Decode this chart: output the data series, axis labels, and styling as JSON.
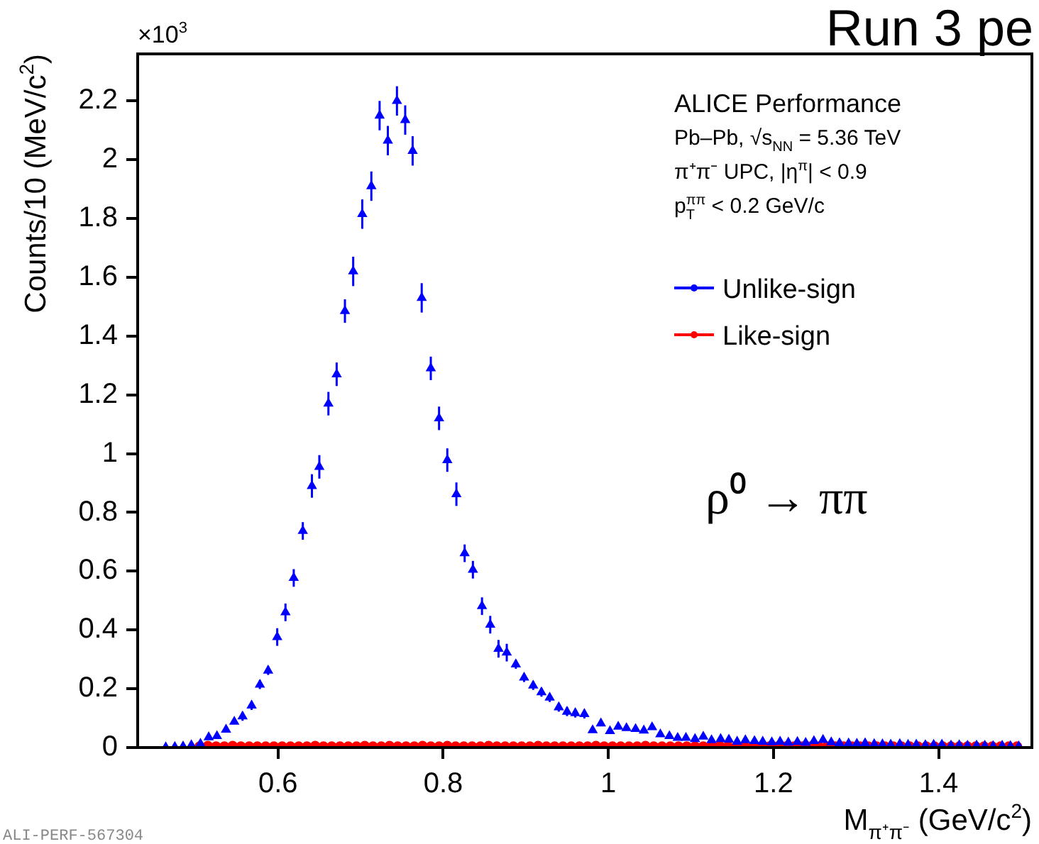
{
  "chart_data": {
    "type": "scatter",
    "xlabel": "M$_{π⁺π⁻}$ (GeV/c$^{2}$)",
    "ylabel": "Counts/10 (MeV/c$^{2}$)",
    "annotations": [
      "×10$^{3}$",
      "Run 3 pe",
      "ALICE Performance",
      "Pb–Pb, √s$_{NN}$ = 5.36 TeV",
      "π⁺π⁻ UPC, |η$^{π}$| < 0.9",
      "p$_{T}$$^{ππ}$ < 0.2 GeV/c",
      "ρ⁰ → ππ",
      "ALI-PERF-567304"
    ],
    "xlim": [
      0.43,
      1.513
    ],
    "xticks": [
      0.6,
      0.8,
      1,
      1.2,
      1.4
    ],
    "ylim": [
      0,
      2.36
    ],
    "yticks": [
      0,
      0.2,
      0.4,
      0.6,
      0.8,
      1,
      1.2,
      1.4,
      1.6,
      1.8,
      2,
      2.2
    ],
    "legend": "top right",
    "series": [
      {
        "name": "Unlike-sign",
        "color": "#0000ff",
        "marker": "triangle",
        "x": [
          0.464,
          0.475,
          0.485,
          0.495,
          0.506,
          0.516,
          0.526,
          0.537,
          0.547,
          0.557,
          0.568,
          0.578,
          0.588,
          0.599,
          0.609,
          0.619,
          0.63,
          0.641,
          0.65,
          0.661,
          0.671,
          0.681,
          0.691,
          0.702,
          0.713,
          0.723,
          0.733,
          0.744,
          0.754,
          0.763,
          0.774,
          0.785,
          0.795,
          0.805,
          0.816,
          0.826,
          0.836,
          0.847,
          0.857,
          0.867,
          0.877,
          0.888,
          0.898,
          0.909,
          0.919,
          0.929,
          0.94,
          0.95,
          0.96,
          0.971,
          0.981,
          0.991,
          1.002,
          1.012,
          1.022,
          1.033,
          1.043,
          1.053,
          1.063,
          1.074,
          1.084,
          1.094,
          1.105,
          1.115,
          1.125,
          1.136,
          1.146,
          1.156,
          1.166,
          1.177,
          1.187,
          1.198,
          1.208,
          1.218,
          1.229,
          1.239,
          1.249,
          1.26,
          1.27,
          1.28,
          1.291,
          1.301,
          1.311,
          1.322,
          1.332,
          1.342,
          1.353,
          1.363,
          1.373,
          1.384,
          1.394,
          1.404,
          1.415,
          1.425,
          1.435,
          1.446,
          1.456,
          1.466,
          1.477,
          1.487,
          1.497
        ],
        "values": [
          0.001,
          0.002,
          0.004,
          0.008,
          0.013,
          0.035,
          0.039,
          0.061,
          0.088,
          0.106,
          0.143,
          0.214,
          0.262,
          0.376,
          0.46,
          0.577,
          0.737,
          0.89,
          0.955,
          1.17,
          1.27,
          1.485,
          1.62,
          1.815,
          1.91,
          2.15,
          2.065,
          2.2,
          2.135,
          2.03,
          1.53,
          1.29,
          1.12,
          0.978,
          0.862,
          0.661,
          0.605,
          0.481,
          0.418,
          0.336,
          0.323,
          0.283,
          0.238,
          0.211,
          0.188,
          0.17,
          0.137,
          0.122,
          0.117,
          0.114,
          0.059,
          0.082,
          0.056,
          0.071,
          0.066,
          0.063,
          0.058,
          0.069,
          0.045,
          0.039,
          0.033,
          0.033,
          0.029,
          0.037,
          0.025,
          0.029,
          0.027,
          0.02,
          0.025,
          0.022,
          0.02,
          0.018,
          0.02,
          0.017,
          0.019,
          0.016,
          0.022,
          0.026,
          0.018,
          0.015,
          0.014,
          0.013,
          0.015,
          0.012,
          0.011,
          0.01,
          0.012,
          0.009,
          0.01,
          0.008,
          0.009,
          0.01,
          0.007,
          0.008,
          0.006,
          0.007,
          0.006,
          0.005,
          0.006,
          0.005,
          0.004
        ],
        "errors": [
          null,
          null,
          null,
          null,
          null,
          null,
          null,
          null,
          null,
          0.015,
          0.015,
          0.015,
          0.015,
          0.03,
          0.03,
          0.03,
          0.03,
          0.04,
          0.04,
          0.04,
          0.04,
          0.04,
          0.05,
          0.05,
          0.05,
          0.05,
          0.05,
          0.05,
          0.05,
          0.05,
          0.05,
          0.04,
          0.04,
          0.04,
          0.04,
          0.03,
          0.03,
          0.03,
          0.03,
          0.03,
          0.03,
          0.015,
          0.015,
          0.015,
          0.015,
          0.015,
          0.015,
          0.015,
          0.015,
          0.015,
          null,
          null,
          null,
          null,
          null,
          null,
          null,
          null,
          null,
          null,
          null,
          null,
          null,
          null,
          null,
          null,
          null,
          null,
          null,
          null,
          null,
          null,
          null,
          null,
          null,
          null,
          null,
          null,
          null,
          null,
          null,
          null,
          null,
          null,
          null,
          null,
          null,
          null,
          null,
          null,
          null,
          null,
          null,
          null,
          null,
          null,
          null,
          null,
          null,
          null,
          null
        ]
      },
      {
        "name": "Like-sign",
        "color": "#ff0000",
        "marker": "circle",
        "x": [
          0.505,
          0.515,
          0.525,
          0.535,
          0.545,
          0.555,
          0.565,
          0.575,
          0.585,
          0.595,
          0.605,
          0.615,
          0.625,
          0.635,
          0.645,
          0.655,
          0.665,
          0.675,
          0.685,
          0.695,
          0.705,
          0.715,
          0.725,
          0.735,
          0.745,
          0.755,
          0.765,
          0.775,
          0.785,
          0.795,
          0.805,
          0.815,
          0.825,
          0.835,
          0.845,
          0.855,
          0.865,
          0.875,
          0.885,
          0.895,
          0.905,
          0.915,
          0.925,
          0.935,
          0.945,
          0.955,
          0.965,
          0.975,
          0.985,
          0.995,
          1.005,
          1.015,
          1.025,
          1.035,
          1.045,
          1.055,
          1.065,
          1.075,
          1.085,
          1.095,
          1.105,
          1.115,
          1.125,
          1.135,
          1.145,
          1.155,
          1.165,
          1.175,
          1.185,
          1.195,
          1.205,
          1.215,
          1.225,
          1.235,
          1.245,
          1.255,
          1.265,
          1.275,
          1.285,
          1.295,
          1.305,
          1.315,
          1.325,
          1.335,
          1.345,
          1.355,
          1.365,
          1.375,
          1.385,
          1.395,
          1.405,
          1.415,
          1.425,
          1.435,
          1.445,
          1.455,
          1.465,
          1.475,
          1.485,
          1.495
        ],
        "values": [
          0.003,
          0.005,
          0.003,
          0.003,
          0.005,
          0.003,
          0.003,
          0.003,
          0.003,
          0.003,
          0.003,
          0.003,
          0.003,
          0.003,
          0.005,
          0.003,
          0.003,
          0.003,
          0.003,
          0.003,
          0.005,
          0.003,
          0.003,
          0.005,
          0.003,
          0.003,
          0.003,
          0.005,
          0.003,
          0.003,
          0.005,
          0.003,
          0.003,
          0.003,
          0.003,
          0.005,
          0.003,
          0.003,
          0.003,
          0.003,
          0.003,
          0.005,
          0.003,
          0.003,
          0.003,
          0.003,
          0.003,
          0.003,
          0.005,
          0.003,
          0.003,
          0.003,
          0.003,
          0.003,
          0.005,
          0.003,
          0.003,
          0.003,
          0.003,
          0.003,
          0.003,
          0.003,
          0.003,
          0.005,
          0.003,
          0.003,
          0.003,
          0.003,
          0.003,
          0.003,
          0.003,
          0.003,
          0.003,
          0.003,
          0.003,
          0.003,
          0.003,
          0.003,
          0.003,
          0.003,
          0.003,
          0.003,
          0.003,
          0.003,
          0.003,
          0.003,
          0.003,
          0.003,
          0.003,
          0.003,
          0.003,
          0.003,
          0.003,
          0.003,
          0.003,
          0.003,
          0.003,
          0.003,
          0.003,
          0.003
        ]
      }
    ]
  }
}
